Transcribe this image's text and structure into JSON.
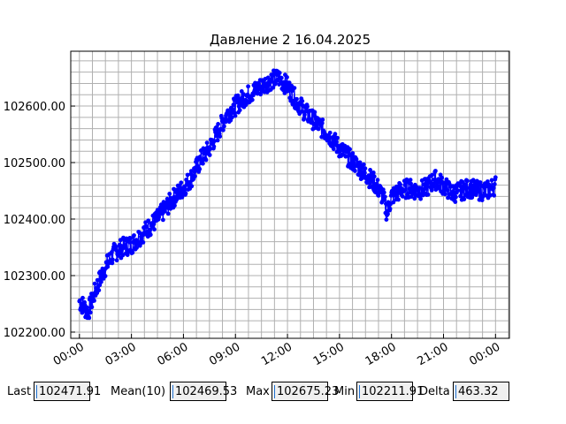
{
  "chart_data": {
    "type": "scatter",
    "title": "Давление 2 16.04.2025",
    "xlabel": "",
    "ylabel": "",
    "x_unit": "hours",
    "xlim": [
      -0.5,
      24.8
    ],
    "ylim": [
      102189,
      102697
    ],
    "x_ticks": [
      0,
      3,
      6,
      9,
      12,
      15,
      18,
      21,
      24
    ],
    "x_tick_labels": [
      "00:00",
      "03:00",
      "06:00",
      "09:00",
      "12:00",
      "15:00",
      "18:00",
      "21:00",
      "00:00"
    ],
    "y_ticks": [
      102200,
      102300,
      102400,
      102500,
      102600
    ],
    "y_tick_labels": [
      "102200.00",
      "102300.00",
      "102400.00",
      "102500.00",
      "102600.00"
    ],
    "grid": true,
    "color": "#0000ff",
    "series": [
      {
        "trend": [
          [
            0.0,
            102255
          ],
          [
            0.5,
            102235
          ],
          [
            1.0,
            102280
          ],
          [
            1.5,
            102315
          ],
          [
            2.0,
            102340
          ],
          [
            2.5,
            102350
          ],
          [
            3.0,
            102355
          ],
          [
            3.5,
            102370
          ],
          [
            4.0,
            102385
          ],
          [
            4.5,
            102400
          ],
          [
            5.0,
            102420
          ],
          [
            5.5,
            102440
          ],
          [
            6.0,
            102455
          ],
          [
            6.5,
            102475
          ],
          [
            7.0,
            102505
          ],
          [
            7.5,
            102525
          ],
          [
            8.0,
            102555
          ],
          [
            8.5,
            102585
          ],
          [
            9.0,
            102600
          ],
          [
            9.5,
            102615
          ],
          [
            10.0,
            102625
          ],
          [
            10.5,
            102635
          ],
          [
            11.0,
            102645
          ],
          [
            11.5,
            102650
          ],
          [
            12.0,
            102635
          ],
          [
            12.5,
            102610
          ],
          [
            13.0,
            102590
          ],
          [
            13.5,
            102575
          ],
          [
            14.0,
            102560
          ],
          [
            14.5,
            102545
          ],
          [
            15.0,
            102525
          ],
          [
            15.5,
            102510
          ],
          [
            16.0,
            102495
          ],
          [
            16.5,
            102480
          ],
          [
            17.0,
            102465
          ],
          [
            17.5,
            102440
          ],
          [
            17.75,
            102410
          ],
          [
            18.0,
            102440
          ],
          [
            18.5,
            102450
          ],
          [
            19.0,
            102455
          ],
          [
            19.5,
            102450
          ],
          [
            20.0,
            102455
          ],
          [
            20.5,
            102470
          ],
          [
            21.0,
            102460
          ],
          [
            21.5,
            102445
          ],
          [
            22.0,
            102450
          ],
          [
            22.5,
            102455
          ],
          [
            23.0,
            102450
          ],
          [
            23.5,
            102450
          ],
          [
            24.0,
            102460
          ]
        ]
      }
    ]
  },
  "stats": {
    "last_label": "Last",
    "last_value": "102471.91",
    "mean_label": "Mean(10)",
    "mean_value": "102469.53",
    "max_label": "Max",
    "max_value": "102675.23",
    "min_label": "Min",
    "min_value": "102211.91",
    "delta_label": "Delta",
    "delta_value": "463.32"
  }
}
